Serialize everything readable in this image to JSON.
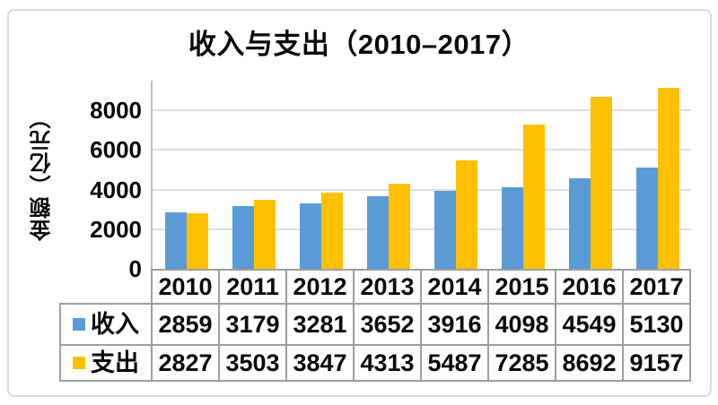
{
  "title": "收入与支出（2010–2017）",
  "ylabel": "金额（亿元）",
  "colors": {
    "income_bar": "#5B9BD5",
    "expense_bar": "#FFC000",
    "gridline": "#DEDEDE",
    "axis_line": "#BFBFBF",
    "table_border": "#9E9E9E",
    "frame_border": "#DCDCDC",
    "text": "#0A0A0A",
    "background": "#FFFFFF"
  },
  "chart_data": {
    "type": "bar",
    "title": "收入与支出（2010–2017）",
    "xlabel": "",
    "ylabel": "金额（亿元）",
    "categories": [
      "2010",
      "2011",
      "2012",
      "2013",
      "2014",
      "2015",
      "2016",
      "2017"
    ],
    "series": [
      {
        "id": "income",
        "name": "收入",
        "color": "#5B9BD5",
        "values": [
          2859,
          3179,
          3281,
          3652,
          3916,
          4098,
          4549,
          5130
        ]
      },
      {
        "id": "expense",
        "name": "支出",
        "color": "#FFC000",
        "values": [
          2827,
          3503,
          3847,
          4313,
          5487,
          7285,
          8692,
          9157
        ]
      }
    ],
    "yticks": [
      0,
      2000,
      4000,
      6000,
      8000
    ],
    "ylim": [
      0,
      9500
    ],
    "grid": true,
    "legend_position": "data-table-left",
    "data_table": true
  }
}
